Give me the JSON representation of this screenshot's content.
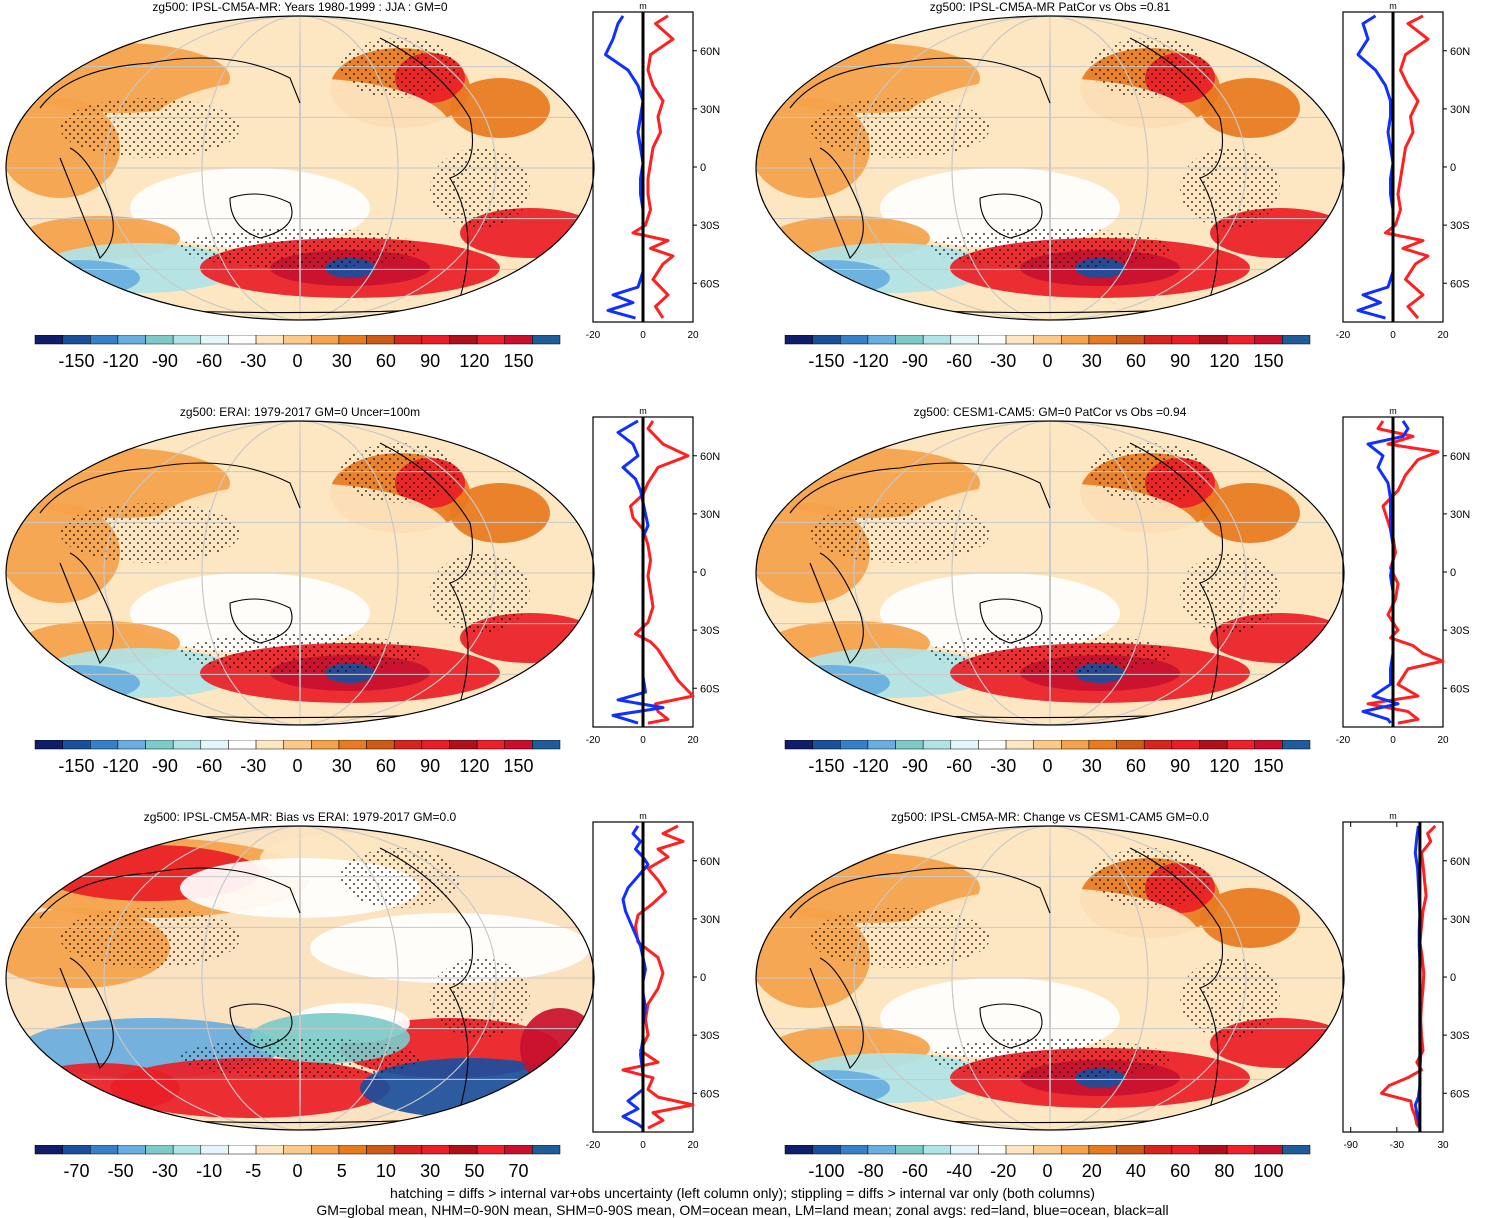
{
  "colors": {
    "palette": [
      "#0f1d6b",
      "#1a4f9c",
      "#3580c8",
      "#68aee0",
      "#7ccbc8",
      "#b0e3e6",
      "#e4f6fa",
      "#ffffff",
      "#fde7c2",
      "#fbc98a",
      "#f5a24a",
      "#e87a1f",
      "#cf5a15",
      "#d8241f",
      "#ea1e26",
      "#b0101a",
      "#f0202a",
      "#c8102e",
      "#1f5c99"
    ],
    "land": "#ff2020",
    "ocean": "#1030ff",
    "all": "#000000"
  },
  "chart_data": [
    {
      "id": "p1",
      "type": "map",
      "title": "zg500: IPSL-CM5A-MR: Years 1980-1999 : JJA : GM=0",
      "colorbar_labels": [
        "-150",
        "-120",
        "-90",
        "-60",
        "-30",
        "0",
        "30",
        "60",
        "90",
        "120",
        "150"
      ],
      "zonal": {
        "unit": "m",
        "xlim": [
          -20,
          20
        ],
        "x_ticks": [
          "-20",
          "0",
          "20"
        ],
        "lat_ticks": [
          "60N",
          "30N",
          "0",
          "30S",
          "60S"
        ],
        "series": [
          {
            "name": "land",
            "lat": [
              78,
              74,
              66,
              58,
              50,
              42,
              34,
              26,
              18,
              10,
              2,
              -6,
              -14,
              -22,
              -30,
              -34,
              -38,
              -42,
              -46,
              -50,
              -58,
              -66,
              -72,
              -78
            ],
            "values": [
              10,
              5,
              12,
              3,
              2,
              4,
              8,
              6,
              7,
              4,
              3,
              2,
              2,
              3,
              1,
              -4,
              10,
              3,
              12,
              8,
              4,
              10,
              5,
              8
            ]
          },
          {
            "name": "ocean",
            "lat": [
              78,
              74,
              66,
              58,
              50,
              42,
              34,
              26,
              18,
              10,
              2,
              -6,
              -14,
              -22,
              -30,
              -38,
              -46,
              -54,
              -62,
              -66,
              -70,
              -74,
              -78
            ],
            "values": [
              -8,
              -10,
              -12,
              -15,
              -6,
              -2,
              0,
              -1,
              -2,
              -1,
              0,
              -1,
              -1,
              0,
              0,
              0,
              0,
              0,
              -2,
              -12,
              -4,
              -14,
              -3
            ]
          },
          {
            "name": "all",
            "lat": [
              80,
              -80
            ],
            "values": [
              0,
              0
            ]
          }
        ]
      }
    },
    {
      "id": "p2",
      "type": "map",
      "title": "zg500: IPSL-CM5A-MR PatCor vs Obs =0.81",
      "colorbar_labels": [
        "-150",
        "-120",
        "-90",
        "-60",
        "-30",
        "0",
        "30",
        "60",
        "90",
        "120",
        "150"
      ],
      "zonal": {
        "unit": "m",
        "xlim": [
          -20,
          20
        ],
        "x_ticks": [
          "-20",
          "0",
          "20"
        ],
        "lat_ticks": [
          "60N",
          "30N",
          "0",
          "30S",
          "60S"
        ],
        "series": [
          {
            "name": "land",
            "lat": [
              78,
              74,
              66,
              58,
              50,
              42,
              34,
              26,
              18,
              10,
              2,
              -6,
              -14,
              -22,
              -30,
              -34,
              -38,
              -42,
              -46,
              -50,
              -58,
              -66,
              -72,
              -78
            ],
            "values": [
              12,
              6,
              14,
              5,
              3,
              6,
              10,
              7,
              8,
              5,
              4,
              3,
              2,
              3,
              1,
              -3,
              12,
              4,
              14,
              9,
              5,
              12,
              6,
              10
            ]
          },
          {
            "name": "ocean",
            "lat": [
              78,
              74,
              66,
              58,
              50,
              42,
              34,
              26,
              18,
              10,
              2,
              -6,
              -14,
              -22,
              -30,
              -38,
              -46,
              -54,
              -62,
              -66,
              -70,
              -74,
              -78
            ],
            "values": [
              -7,
              -12,
              -10,
              -14,
              -7,
              -3,
              -1,
              -1,
              -2,
              -1,
              0,
              -1,
              -1,
              0,
              0,
              0,
              0,
              0,
              -2,
              -12,
              -5,
              -14,
              -3
            ]
          },
          {
            "name": "all",
            "lat": [
              80,
              -80
            ],
            "values": [
              0,
              0
            ]
          }
        ]
      }
    },
    {
      "id": "p3",
      "type": "map",
      "title": "zg500: ERAI: 1979-2017 GM=0 Uncer=100m",
      "colorbar_labels": [
        "-150",
        "-120",
        "-90",
        "-60",
        "-30",
        "0",
        "30",
        "60",
        "90",
        "120",
        "150"
      ],
      "zonal": {
        "unit": "m",
        "xlim": [
          -20,
          20
        ],
        "x_ticks": [
          "-20",
          "0",
          "20"
        ],
        "lat_ticks": [
          "60N",
          "30N",
          "0",
          "30S",
          "60S"
        ],
        "series": [
          {
            "name": "land",
            "lat": [
              78,
              74,
              66,
              60,
              54,
              46,
              40,
              34,
              28,
              22,
              14,
              6,
              -2,
              -10,
              -18,
              -26,
              -32,
              -36,
              -40,
              -48,
              -56,
              -64,
              -68,
              -72,
              -76,
              -78
            ],
            "values": [
              4,
              2,
              8,
              18,
              6,
              2,
              0,
              -5,
              -4,
              0,
              2,
              3,
              2,
              3,
              4,
              2,
              -3,
              3,
              6,
              10,
              14,
              20,
              5,
              6,
              10,
              2
            ]
          },
          {
            "name": "ocean",
            "lat": [
              78,
              72,
              66,
              60,
              54,
              48,
              42,
              36,
              30,
              24,
              18,
              10,
              2,
              -6,
              -14,
              -22,
              -30,
              -38,
              -46,
              -54,
              -62,
              -66,
              -70,
              -74,
              -78
            ],
            "values": [
              -2,
              -10,
              -4,
              -2,
              -8,
              -3,
              -1,
              0,
              1,
              2,
              0,
              0,
              0,
              0,
              0,
              0,
              0,
              0,
              0,
              0,
              1,
              -10,
              8,
              -12,
              -2
            ]
          },
          {
            "name": "all",
            "lat": [
              80,
              -80
            ],
            "values": [
              0,
              0
            ]
          }
        ]
      }
    },
    {
      "id": "p4",
      "type": "map",
      "title": "zg500: CESM1-CAM5: GM=0 PatCor vs Obs =0.94",
      "colorbar_labels": [
        "-150",
        "-120",
        "-90",
        "-60",
        "-30",
        "0",
        "30",
        "60",
        "90",
        "120",
        "150"
      ],
      "zonal": {
        "unit": "m",
        "xlim": [
          -20,
          20
        ],
        "x_ticks": [
          "-20",
          "0",
          "20"
        ],
        "lat_ticks": [
          "60N",
          "30N",
          "0",
          "30S",
          "60S"
        ],
        "series": [
          {
            "name": "land",
            "lat": [
              78,
              74,
              70,
              66,
              62,
              58,
              50,
              42,
              34,
              26,
              18,
              10,
              2,
              -6,
              -14,
              -22,
              -30,
              -34,
              -38,
              -42,
              -46,
              -50,
              -58,
              -64,
              -68,
              -72,
              -76,
              -78
            ],
            "values": [
              -4,
              -6,
              8,
              -2,
              18,
              10,
              5,
              2,
              -4,
              -2,
              0,
              1,
              -1,
              2,
              1,
              -2,
              2,
              -1,
              8,
              12,
              20,
              6,
              2,
              10,
              -10,
              6,
              10,
              2
            ]
          },
          {
            "name": "ocean",
            "lat": [
              78,
              74,
              70,
              66,
              60,
              54,
              46,
              38,
              30,
              22,
              14,
              6,
              -2,
              -10,
              -18,
              -26,
              -34,
              -42,
              -50,
              -58,
              -64,
              -68,
              -72,
              -76,
              -78
            ],
            "values": [
              4,
              6,
              4,
              -10,
              -4,
              -6,
              -2,
              -1,
              -1,
              -1,
              0,
              0,
              -1,
              0,
              0,
              0,
              0,
              0,
              -1,
              -1,
              -8,
              2,
              -12,
              -2,
              -1
            ]
          },
          {
            "name": "all",
            "lat": [
              80,
              -80
            ],
            "values": [
              0,
              0
            ]
          }
        ]
      }
    },
    {
      "id": "p5",
      "type": "map",
      "title": "zg500: IPSL-CM5A-MR: Bias vs ERAI: 1979-2017 GM=0.0",
      "colorbar_labels": [
        "-70",
        "-50",
        "-30",
        "-10",
        "-5",
        "0",
        "5",
        "10",
        "30",
        "50",
        "70"
      ],
      "zonal": {
        "unit": "m",
        "xlim": [
          -20,
          20
        ],
        "x_ticks": [
          "-20",
          "0",
          "20"
        ],
        "lat_ticks": [
          "60N",
          "30N",
          "0",
          "30S",
          "60S"
        ],
        "series": [
          {
            "name": "land",
            "lat": [
              78,
              74,
              70,
              66,
              62,
              56,
              50,
              44,
              38,
              32,
              26,
              18,
              10,
              2,
              -6,
              -14,
              -22,
              -30,
              -38,
              -44,
              -48,
              -52,
              -58,
              -62,
              -66,
              -70,
              -74,
              -78
            ],
            "values": [
              14,
              8,
              16,
              6,
              10,
              2,
              6,
              9,
              4,
              -2,
              -3,
              -2,
              6,
              8,
              6,
              2,
              1,
              2,
              -1,
              6,
              -8,
              4,
              2,
              6,
              20,
              4,
              8,
              2
            ]
          },
          {
            "name": "ocean",
            "lat": [
              78,
              74,
              70,
              66,
              62,
              58,
              52,
              46,
              40,
              34,
              28,
              22,
              16,
              10,
              4,
              -2,
              -8,
              -16,
              -24,
              -32,
              -40,
              -50,
              -58,
              -64,
              -68,
              -72,
              -76,
              -78
            ],
            "values": [
              -2,
              -4,
              -1,
              -3,
              0,
              2,
              -2,
              -6,
              -8,
              -7,
              -5,
              -3,
              -1,
              0,
              1,
              0,
              0,
              1,
              0,
              0,
              -1,
              0,
              0,
              -6,
              -2,
              -8,
              -2,
              0
            ]
          },
          {
            "name": "all",
            "lat": [
              80,
              -80
            ],
            "values": [
              0,
              0
            ]
          }
        ]
      }
    },
    {
      "id": "p6",
      "type": "map",
      "title": "zg500: IPSL-CM5A-MR: Change vs CESM1-CAM5 GM=0.0",
      "colorbar_labels": [
        "-100",
        "-80",
        "-60",
        "-40",
        "-20",
        "0",
        "20",
        "40",
        "60",
        "80",
        "100"
      ],
      "zonal": {
        "unit": "m",
        "xlim": [
          -100,
          30
        ],
        "x_ticks": [
          "-90",
          "-30",
          "30"
        ],
        "lat_ticks": [
          "60N",
          "30N",
          "0",
          "30S",
          "60S"
        ],
        "series": [
          {
            "name": "land",
            "lat": [
              78,
              74,
              70,
              64,
              58,
              50,
              42,
              34,
              26,
              18,
              10,
              2,
              -6,
              -14,
              -22,
              -30,
              -38,
              -44,
              -48,
              -52,
              -56,
              -60,
              -64,
              -68,
              -72,
              -76,
              -78
            ],
            "values": [
              20,
              10,
              14,
              2,
              4,
              6,
              8,
              4,
              2,
              0,
              3,
              5,
              4,
              2,
              1,
              2,
              4,
              -4,
              2,
              -16,
              -40,
              -50,
              -12,
              -10,
              -6,
              -4,
              0
            ]
          },
          {
            "name": "ocean",
            "lat": [
              78,
              72,
              64,
              56,
              48,
              40,
              32,
              24,
              16,
              8,
              0,
              -8,
              -16,
              -24,
              -32,
              -40,
              -48,
              -56,
              -62,
              -66,
              -70,
              -74,
              -78
            ],
            "values": [
              -2,
              -4,
              -6,
              -3,
              -2,
              -1,
              0,
              -1,
              -1,
              0,
              0,
              0,
              0,
              0,
              0,
              1,
              0,
              0,
              -2,
              -6,
              -4,
              -2,
              0
            ]
          },
          {
            "name": "all",
            "lat": [
              80,
              -80
            ],
            "values": [
              0,
              0
            ]
          }
        ]
      }
    }
  ],
  "footer": {
    "line1": "hatching = diffs > internal var+obs uncertainty (left column only); stippling = diffs > internal var only (both columns)",
    "line2": "GM=global mean, NHM=0-90N mean, SHM=0-90S mean, OM=ocean mean, LM=land mean; zonal avgs: red=land, blue=ocean, black=all"
  }
}
